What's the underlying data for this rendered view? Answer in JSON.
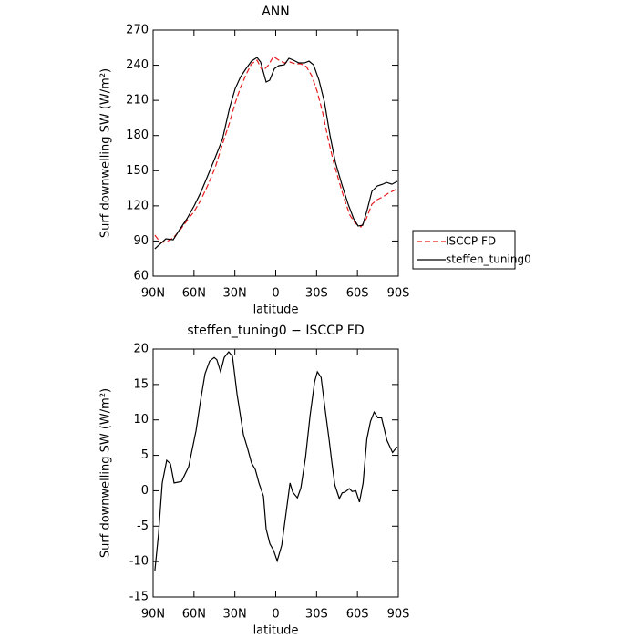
{
  "chart_data": [
    {
      "type": "line",
      "title": "ANN",
      "xlabel": "latitude",
      "ylabel": "Surf downwelling SW (W/m²)",
      "xlim": [
        90,
        -90
      ],
      "ylim": [
        60,
        270
      ],
      "xticks": [
        {
          "value": 90,
          "label": "90N"
        },
        {
          "value": 60,
          "label": "60N"
        },
        {
          "value": 30,
          "label": "30N"
        },
        0,
        {
          "value": -30,
          "label": "30S"
        },
        {
          "value": -60,
          "label": "60S"
        },
        {
          "value": -90,
          "label": "90S"
        }
      ],
      "yticks": [
        60,
        90,
        120,
        150,
        180,
        210,
        240,
        270
      ],
      "legend": "outside-right",
      "series": [
        {
          "name": "ISCCP FD",
          "color": "#e8191c",
          "linestyle": "dashed",
          "x": [
            88.7,
            84.6,
            80.0,
            75.3,
            70.6,
            65.2,
            59.9,
            55.2,
            49.8,
            44.5,
            39.1,
            33.8,
            29.8,
            25.8,
            21.8,
            17.8,
            13.7,
            9.7,
            5.6,
            1.7,
            -2.3,
            -6.3,
            -10.3,
            -14.4,
            -18.4,
            -22.4,
            -26.4,
            -30.4,
            -34.4,
            -38.4,
            -42.5,
            -46.5,
            -50.5,
            -54.5,
            -58.5,
            -62.5,
            -66.5,
            -70.6,
            -74.6,
            -78.6,
            -82.6,
            -89.3
          ],
          "values": [
            95,
            88.7,
            89.5,
            92.6,
            98.8,
            107.4,
            115.2,
            124.5,
            137.8,
            152.5,
            172.8,
            191.4,
            207.8,
            221,
            231.9,
            241.2,
            244.3,
            235,
            239.7,
            247.4,
            244.3,
            242,
            242.8,
            241.2,
            241.2,
            238.9,
            231.1,
            217.9,
            200,
            177.4,
            157.2,
            141,
            125.3,
            112,
            105,
            101.9,
            109,
            121.4,
            125.3,
            127.6,
            130.7,
            134.6
          ]
        },
        {
          "name": "steffen_tuning0",
          "color": "#000000",
          "linestyle": "solid",
          "x": [
            88.7,
            85.3,
            80.6,
            75.3,
            70.6,
            65.2,
            59.9,
            55.2,
            49.8,
            44.5,
            39.1,
            33.8,
            29.8,
            25.8,
            21.8,
            17.8,
            13.7,
            11.1,
            7.0,
            4.4,
            1.0,
            -2.3,
            -6.3,
            -9.7,
            -13.0,
            -17.0,
            -21.1,
            -24.4,
            -27.8,
            -31.8,
            -35.8,
            -39.8,
            -43.8,
            -48.5,
            -53.2,
            -57.2,
            -60.5,
            -63.9,
            -67.2,
            -70.6,
            -74.6,
            -78.6,
            -81.3,
            -85.3,
            -89.3
          ],
          "values": [
            83.3,
            87,
            91.9,
            91,
            99.7,
            109,
            120,
            131,
            146,
            161,
            177,
            204,
            220,
            230,
            237,
            243.5,
            246.7,
            242.8,
            225.7,
            227.2,
            237,
            239.7,
            240.4,
            245.9,
            244.3,
            242,
            242,
            243.5,
            240.4,
            227.2,
            208.5,
            180.5,
            157.2,
            138.5,
            121.4,
            109,
            102.8,
            103.5,
            116.7,
            132.3,
            137,
            138.5,
            140,
            138.5,
            141
          ]
        }
      ]
    },
    {
      "type": "line",
      "title": "steffen_tuning0 − ISCCP FD",
      "xlabel": "latitude",
      "ylabel": "Surf downwelling SW (W/m²)",
      "xlim": [
        90,
        -90
      ],
      "ylim": [
        -15,
        20
      ],
      "xticks": [
        {
          "value": 90,
          "label": "90N"
        },
        {
          "value": 60,
          "label": "60N"
        },
        {
          "value": 30,
          "label": "30N"
        },
        0,
        {
          "value": -30,
          "label": "30S"
        },
        {
          "value": -60,
          "label": "60S"
        },
        {
          "value": -90,
          "label": "90S"
        }
      ],
      "yticks": [
        -15,
        -10,
        -5,
        0,
        5,
        10,
        15,
        20
      ],
      "series": [
        {
          "color": "#000000",
          "linestyle": "solid",
          "x": [
            88.7,
            86,
            83.3,
            80,
            77.3,
            74.6,
            69.2,
            63.9,
            58.5,
            55.2,
            51.9,
            48.5,
            45.2,
            43.2,
            40.5,
            37.8,
            34.5,
            31.8,
            28.4,
            23.7,
            21,
            17.7,
            15,
            12.3,
            9,
            7,
            4.3,
            1.6,
            -1.1,
            -4.4,
            -7.8,
            -10.5,
            -12.5,
            -15.9,
            -18.5,
            -21.9,
            -25.2,
            -28.6,
            -30.6,
            -33.3,
            -36.6,
            -39.3,
            -41.4,
            -43.4,
            -46.7,
            -48.8,
            -50.8,
            -54.1,
            -56.1,
            -58.8,
            -61.5,
            -64.2,
            -66.9,
            -69.6,
            -72.3,
            -75,
            -77.7,
            -81.7,
            -85.8,
            -89.1
          ],
          "values": [
            -11.3,
            -6,
            1.1,
            4.3,
            3.8,
            1.1,
            1.3,
            3.4,
            8.5,
            12.7,
            16.5,
            18.3,
            18.8,
            18.5,
            16.8,
            18.8,
            19.6,
            19,
            13.6,
            7.9,
            6.2,
            3.9,
            3,
            1.1,
            -0.8,
            -5.4,
            -7.5,
            -8.4,
            -9.9,
            -7.7,
            -2.8,
            1.1,
            -0.2,
            -1,
            0.4,
            4.7,
            10.6,
            15.4,
            16.8,
            16,
            11,
            7.1,
            3.7,
            0.8,
            -1.1,
            -0.3,
            -0.2,
            0.3,
            -0.1,
            0,
            -1.6,
            1.1,
            7.3,
            9.8,
            11.1,
            10.3,
            10.3,
            7.1,
            5.4,
            6.2
          ]
        }
      ]
    }
  ]
}
